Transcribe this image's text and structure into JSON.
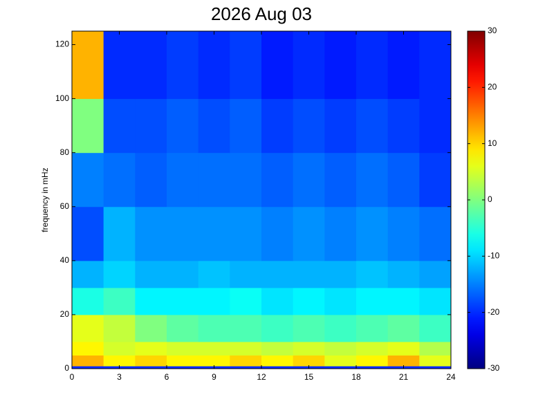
{
  "chart_data": {
    "type": "heatmap",
    "title": "2026 Aug 03",
    "y_label": "frequency in mHz",
    "x_edges": [
      0,
      2,
      4,
      6,
      8,
      10,
      12,
      14,
      16,
      18,
      20,
      22,
      24
    ],
    "y_edges": [
      0,
      1,
      5,
      10,
      20,
      30,
      40,
      60,
      80,
      100,
      125
    ],
    "values": [
      [
        -20,
        -20,
        -20,
        -20,
        -20,
        -20,
        -20,
        -20,
        -20,
        -20,
        -20,
        -20
      ],
      [
        12,
        8,
        10,
        8,
        8,
        10,
        8,
        10,
        6,
        8,
        12,
        6
      ],
      [
        8,
        5,
        6,
        5,
        5,
        5,
        4,
        5,
        4,
        5,
        6,
        3
      ],
      [
        6,
        4,
        0,
        -2,
        -3,
        -3,
        -4,
        -3,
        -4,
        -3,
        -2,
        -4
      ],
      [
        -6,
        -4,
        -8,
        -8,
        -8,
        -7,
        -9,
        -8,
        -9,
        -8,
        -8,
        -9
      ],
      [
        -12,
        -10,
        -12,
        -12,
        -11,
        -12,
        -12,
        -12,
        -12,
        -11,
        -12,
        -13
      ],
      [
        -18,
        -12,
        -14,
        -14,
        -14,
        -14,
        -15,
        -14,
        -15,
        -14,
        -15,
        -16
      ],
      [
        -15,
        -16,
        -17,
        -16,
        -16,
        -16,
        -17,
        -16,
        -17,
        -16,
        -17,
        -19
      ],
      [
        0,
        -18,
        -18,
        -17,
        -18,
        -17,
        -19,
        -18,
        -19,
        -18,
        -19,
        -20
      ],
      [
        12,
        -20,
        -20,
        -19,
        -20,
        -19,
        -21,
        -20,
        -21,
        -20,
        -21,
        -20
      ]
    ],
    "colormap": "jet",
    "xlim": [
      0,
      24
    ],
    "xticks": [
      0,
      3,
      6,
      9,
      12,
      15,
      18,
      21,
      24
    ],
    "ylim": [
      0,
      125
    ],
    "yticks": [
      0,
      20,
      40,
      60,
      80,
      100,
      120
    ],
    "clim": [
      -30,
      30
    ],
    "cticks": [
      -30,
      -20,
      -10,
      0,
      10,
      20,
      30
    ]
  }
}
